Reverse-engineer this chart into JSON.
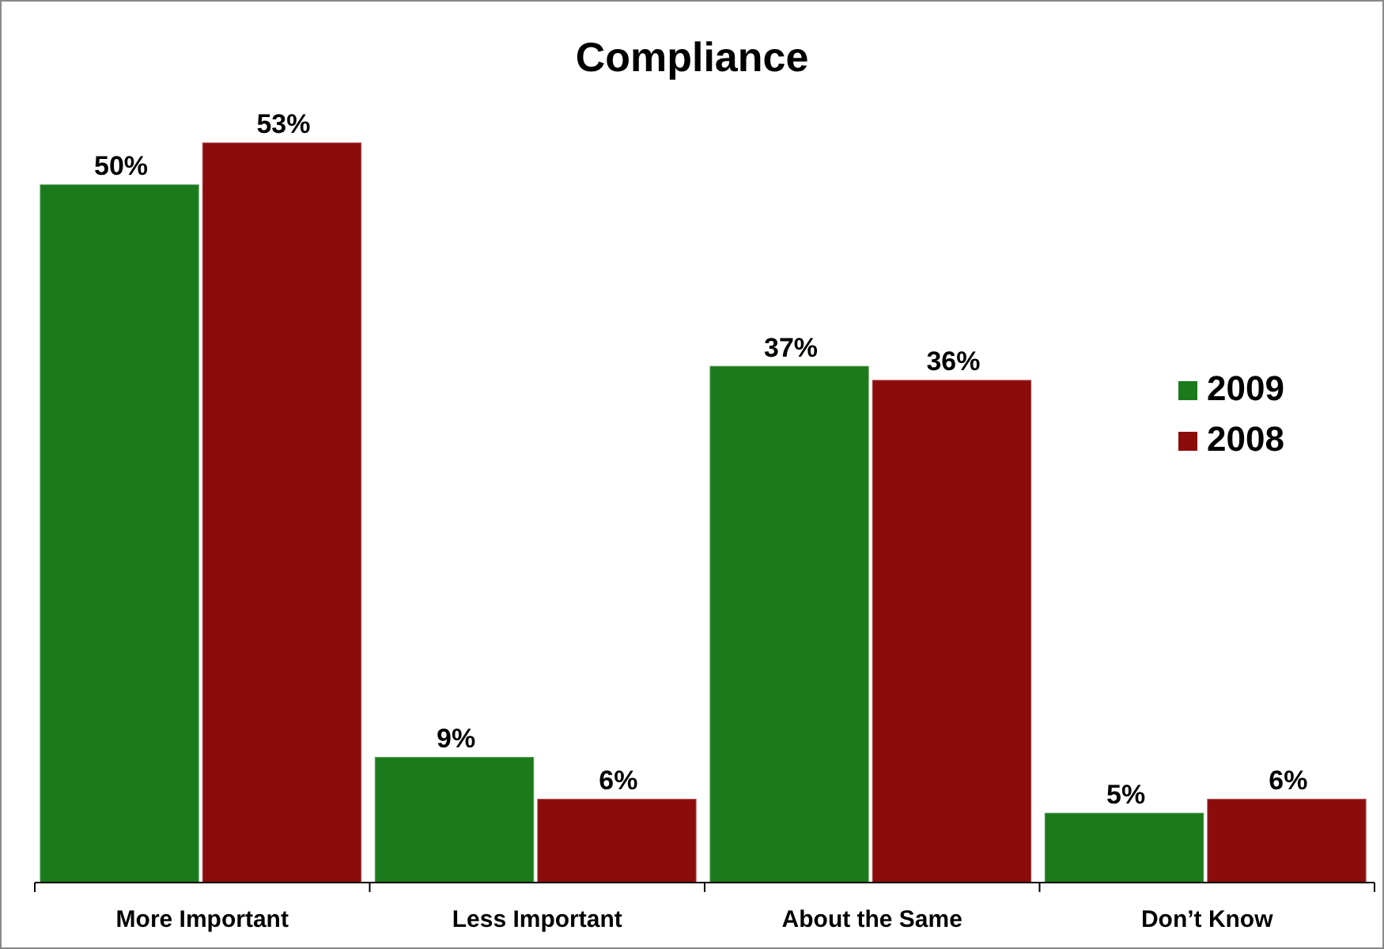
{
  "chart_data": {
    "type": "bar",
    "title": "Compliance",
    "categories": [
      "More Important",
      "Less Important",
      "About the Same",
      "Don’t Know"
    ],
    "series": [
      {
        "name": "2009",
        "color": "#1b7a1b",
        "values": [
          50,
          9,
          37,
          5
        ],
        "value_labels": [
          "50%",
          "9%",
          "37%",
          "5%"
        ]
      },
      {
        "name": "2008",
        "color": "#8c0c0c",
        "values": [
          53,
          6,
          36,
          6
        ],
        "value_labels": [
          "53%",
          "6%",
          "36%",
          "6%"
        ]
      }
    ],
    "legend": "right",
    "grid": false
  }
}
